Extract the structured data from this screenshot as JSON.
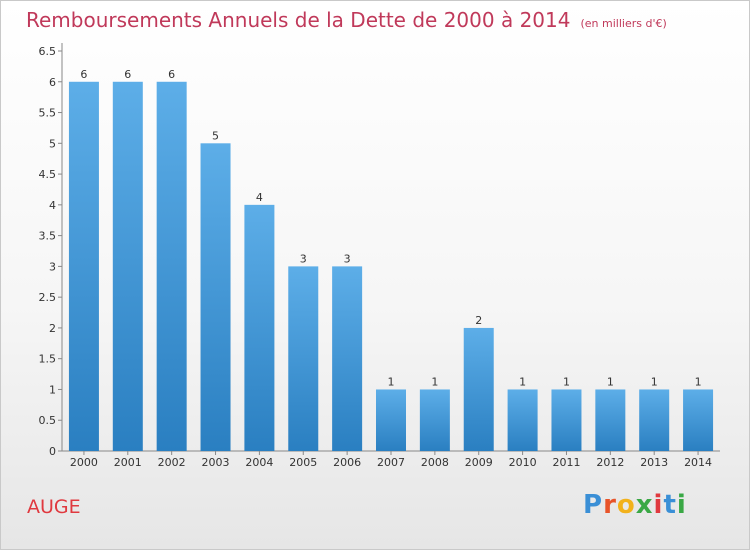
{
  "title": "Remboursements Annuels de la Dette de 2000 à 2014",
  "unit": "(en milliers d'€)",
  "commune": "AUGE",
  "logo_text": "Proxiti",
  "colors": {
    "title": "#c0395a",
    "commune": "#e0393f",
    "bar_top": "#5daee8",
    "bar_bottom": "#2a7fc1"
  },
  "chart_data": {
    "type": "bar",
    "categories": [
      "2000",
      "2001",
      "2002",
      "2003",
      "2004",
      "2005",
      "2006",
      "2007",
      "2008",
      "2009",
      "2010",
      "2011",
      "2012",
      "2013",
      "2014"
    ],
    "values": [
      6,
      6,
      6,
      5,
      4,
      3,
      3,
      1,
      1,
      2,
      1,
      1,
      1,
      1,
      1
    ],
    "ylim": [
      0,
      6.5
    ],
    "yticks": [
      "0",
      "0.5",
      "1",
      "1.5",
      "2",
      "2.5",
      "3",
      "3.5",
      "4",
      "4.5",
      "5",
      "5.5",
      "6",
      "6.5"
    ],
    "grid": false
  }
}
